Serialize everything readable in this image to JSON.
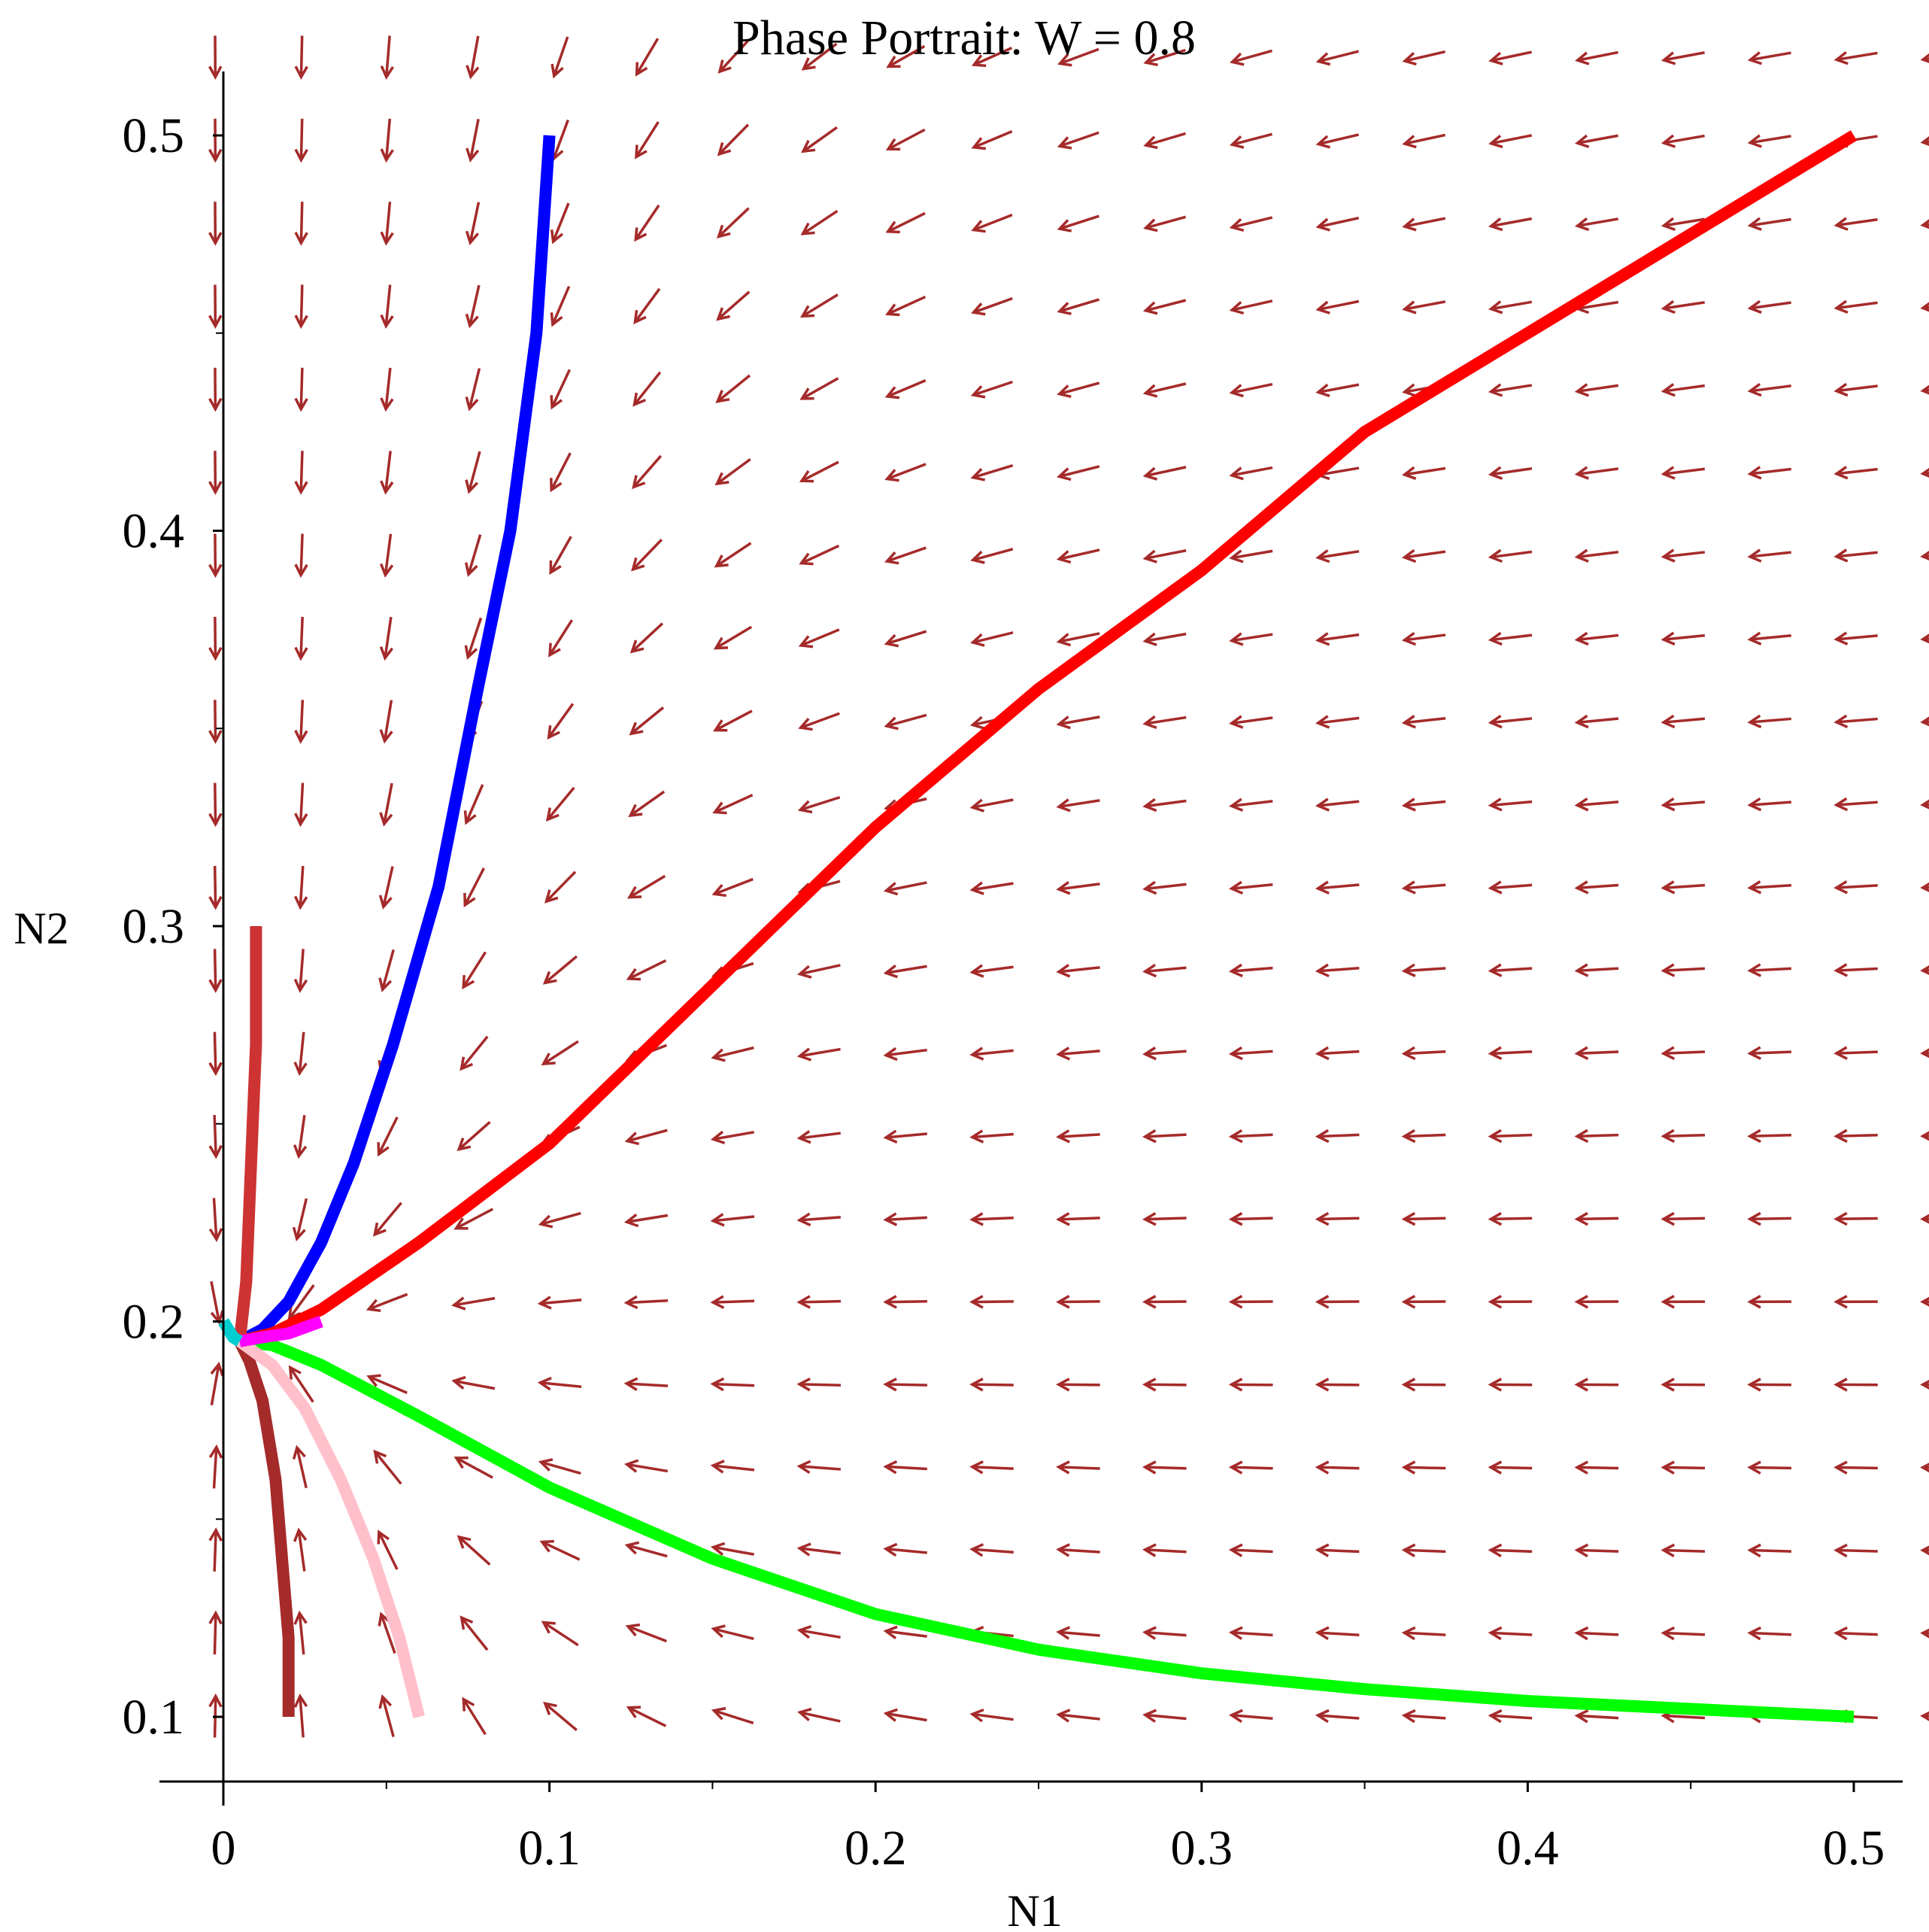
{
  "chart_data": {
    "type": "line",
    "title": "Phase Portrait: W = 0.8",
    "xlabel": "N1",
    "ylabel": "N2",
    "xlim": [
      0,
      0.5
    ],
    "ylim": [
      0.1,
      0.5
    ],
    "x_ticks": [
      "0",
      "0.1",
      "0.2",
      "0.3",
      "0.4",
      "0.5"
    ],
    "y_ticks": [
      "0.1",
      "0.2",
      "0.3",
      "0.4",
      "0.5"
    ],
    "equilibrium": [
      0.005,
      0.195
    ],
    "vector_field": {
      "x_samples": 21,
      "y_samples": 21,
      "color": "#a52a2a",
      "description": "direction arrows of dN1/dt, dN2/dt converging to the equilibrium"
    },
    "series": [
      {
        "color": "#0000ff",
        "points": [
          [
            0.1,
            0.5
          ],
          [
            0.096,
            0.45
          ],
          [
            0.088,
            0.4
          ],
          [
            0.078,
            0.36
          ],
          [
            0.066,
            0.31
          ],
          [
            0.052,
            0.27
          ],
          [
            0.04,
            0.24
          ],
          [
            0.03,
            0.22
          ],
          [
            0.02,
            0.205
          ],
          [
            0.012,
            0.198
          ],
          [
            0.005,
            0.195
          ]
        ]
      },
      {
        "color": "#ff0000",
        "points": [
          [
            0.5,
            0.5
          ],
          [
            0.45,
            0.475
          ],
          [
            0.4,
            0.45
          ],
          [
            0.35,
            0.425
          ],
          [
            0.3,
            0.39
          ],
          [
            0.25,
            0.36
          ],
          [
            0.2,
            0.325
          ],
          [
            0.15,
            0.285
          ],
          [
            0.1,
            0.245
          ],
          [
            0.06,
            0.22
          ],
          [
            0.03,
            0.203
          ],
          [
            0.015,
            0.197
          ],
          [
            0.005,
            0.195
          ]
        ]
      },
      {
        "color": "#00ff00",
        "points": [
          [
            0.5,
            0.1
          ],
          [
            0.45,
            0.102
          ],
          [
            0.4,
            0.104
          ],
          [
            0.35,
            0.107
          ],
          [
            0.3,
            0.111
          ],
          [
            0.25,
            0.117
          ],
          [
            0.2,
            0.126
          ],
          [
            0.15,
            0.14
          ],
          [
            0.1,
            0.158
          ],
          [
            0.06,
            0.176
          ],
          [
            0.03,
            0.189
          ],
          [
            0.015,
            0.194
          ],
          [
            0.005,
            0.195
          ]
        ]
      },
      {
        "color": "#cd3333",
        "points": [
          [
            0.01,
            0.3
          ],
          [
            0.01,
            0.27
          ],
          [
            0.009,
            0.25
          ],
          [
            0.008,
            0.23
          ],
          [
            0.007,
            0.21
          ],
          [
            0.005,
            0.195
          ]
        ]
      },
      {
        "color": "#a52a2a",
        "points": [
          [
            0.02,
            0.1
          ],
          [
            0.02,
            0.12
          ],
          [
            0.018,
            0.14
          ],
          [
            0.016,
            0.16
          ],
          [
            0.012,
            0.18
          ],
          [
            0.008,
            0.19
          ],
          [
            0.005,
            0.195
          ]
        ]
      },
      {
        "color": "#ffc0cb",
        "points": [
          [
            0.06,
            0.1
          ],
          [
            0.054,
            0.12
          ],
          [
            0.046,
            0.14
          ],
          [
            0.036,
            0.16
          ],
          [
            0.025,
            0.178
          ],
          [
            0.015,
            0.189
          ],
          [
            0.005,
            0.195
          ]
        ]
      },
      {
        "color": "#ff00ff",
        "points": [
          [
            0.03,
            0.2
          ],
          [
            0.02,
            0.197
          ],
          [
            0.012,
            0.196
          ],
          [
            0.005,
            0.195
          ]
        ]
      },
      {
        "color": "#00ced1",
        "points": [
          [
            0.0,
            0.2
          ],
          [
            0.003,
            0.196
          ],
          [
            0.005,
            0.195
          ]
        ]
      }
    ]
  }
}
